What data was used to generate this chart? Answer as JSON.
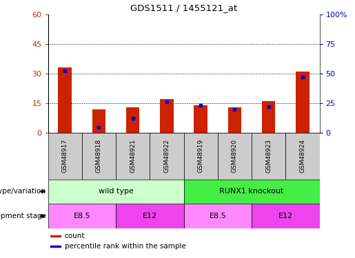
{
  "title": "GDS1511 / 1455121_at",
  "samples": [
    "GSM48917",
    "GSM48918",
    "GSM48921",
    "GSM48922",
    "GSM48919",
    "GSM48920",
    "GSM48923",
    "GSM48924"
  ],
  "counts": [
    33,
    12,
    13,
    17,
    14,
    13,
    16,
    31
  ],
  "percentile": [
    52,
    5,
    12,
    26,
    23,
    20,
    22,
    47
  ],
  "left_ylim": [
    0,
    60
  ],
  "right_ylim": [
    0,
    100
  ],
  "left_yticks": [
    0,
    15,
    30,
    45,
    60
  ],
  "right_yticks": [
    0,
    25,
    50,
    75,
    100
  ],
  "right_yticklabels": [
    "0",
    "25",
    "50",
    "75",
    "100%"
  ],
  "bar_color": "#cc2200",
  "blue_color": "#0000cc",
  "annotation_rows": [
    {
      "label": "genotype/variation",
      "groups": [
        {
          "text": "wild type",
          "start": 0,
          "end": 4,
          "color": "#ccffcc"
        },
        {
          "text": "RUNX1 knockout",
          "start": 4,
          "end": 8,
          "color": "#44ee44"
        }
      ]
    },
    {
      "label": "development stage",
      "groups": [
        {
          "text": "E8.5",
          "start": 0,
          "end": 2,
          "color": "#ff88ff"
        },
        {
          "text": "E12",
          "start": 2,
          "end": 4,
          "color": "#ee44ee"
        },
        {
          "text": "E8.5",
          "start": 4,
          "end": 6,
          "color": "#ff88ff"
        },
        {
          "text": "E12",
          "start": 6,
          "end": 8,
          "color": "#ee44ee"
        }
      ]
    }
  ],
  "legend": [
    {
      "label": "count",
      "color": "#cc2200"
    },
    {
      "label": "percentile rank within the sample",
      "color": "#0000cc"
    }
  ],
  "tick_label_color_left": "#cc2200",
  "tick_label_color_right": "#0000cc",
  "sample_box_color": "#cccccc",
  "bar_width": 0.4
}
